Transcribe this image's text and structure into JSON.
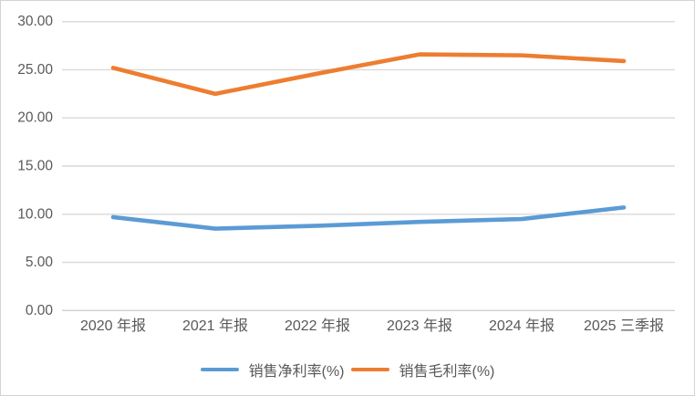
{
  "chart_data": {
    "type": "line",
    "title": "",
    "xlabel": "",
    "ylabel": "",
    "categories": [
      "2020 年报",
      "2021 年报",
      "2022 年报",
      "2023 年报",
      "2024 年报",
      "2025 三季报"
    ],
    "series": [
      {
        "name": "销售净利率(%)",
        "values": [
          9.7,
          8.5,
          8.8,
          9.2,
          9.5,
          10.7
        ],
        "color": "#5B9BD5"
      },
      {
        "name": "销售毛利率(%)",
        "values": [
          25.2,
          22.5,
          24.6,
          26.6,
          26.5,
          25.9
        ],
        "color": "#ED7D31"
      }
    ],
    "ylim": [
      0,
      30
    ],
    "ytick_step": 5,
    "ytick_decimals": 2,
    "ytick_labels": [
      "0.00",
      "5.00",
      "10.00",
      "15.00",
      "20.00",
      "25.00",
      "30.00"
    ],
    "grid": true,
    "legend_position": "bottom"
  },
  "colors": {
    "gridline": "#D9D9D9",
    "axis_line": "#CFCFCF",
    "axis_text": "#595959",
    "frame_border": "#D4D4D4",
    "background": "#FFFFFF",
    "series_blue": "#5B9BD5",
    "series_orange": "#ED7D31"
  }
}
